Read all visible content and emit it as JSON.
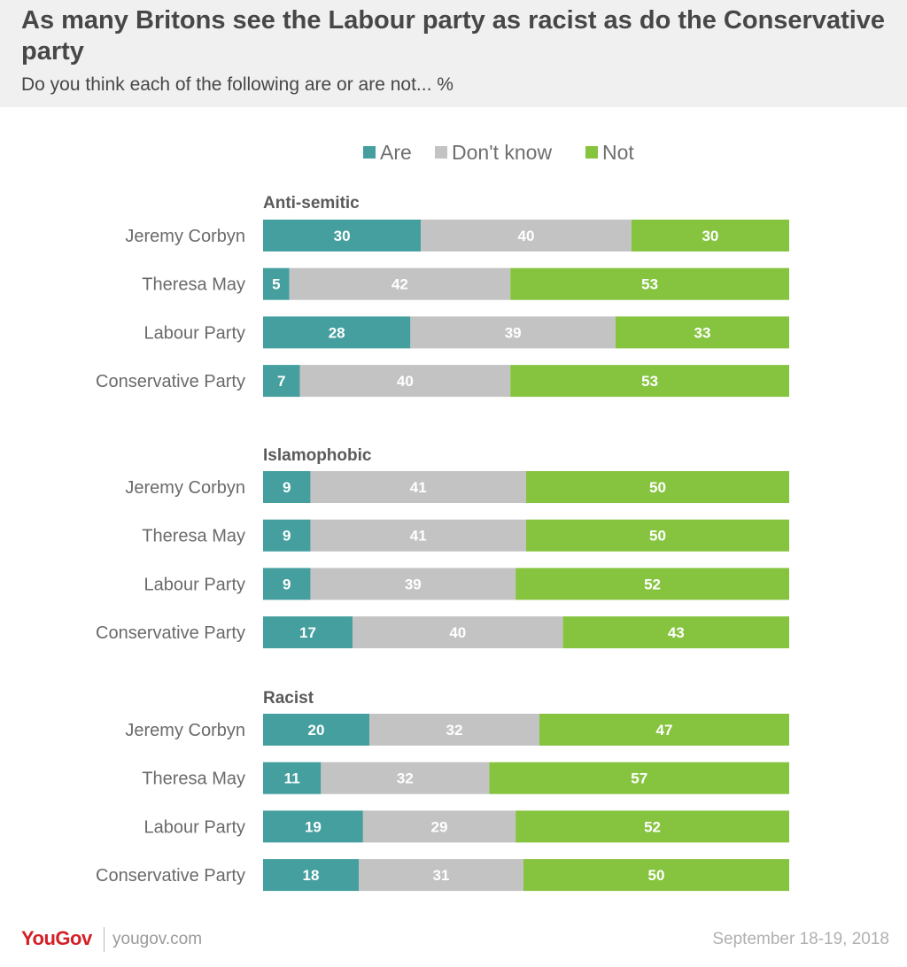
{
  "header": {
    "title": "As many Britons see the Labour party as racist as do the Conservative party",
    "subtitle": "Do you think each of the following are or are not... %"
  },
  "footer": {
    "logo": "YouGov",
    "site": "yougov.com",
    "date": "September 18-19, 2018"
  },
  "colors": {
    "are": "#459f9f",
    "dont_know": "#c3c3c3",
    "not": "#86c440"
  },
  "chart_data": {
    "type": "bar",
    "orientation": "horizontal",
    "stacked": true,
    "legend": [
      "Are",
      "Don't know",
      "Not"
    ],
    "legend_position": "top",
    "groups": [
      {
        "name": "Anti-semitic",
        "categories": [
          "Jeremy Corbyn",
          "Theresa May",
          "Labour Party",
          "Conservative Party"
        ],
        "series": [
          {
            "name": "Are",
            "values": [
              30,
              5,
              28,
              7
            ]
          },
          {
            "name": "Don't know",
            "values": [
              40,
              42,
              39,
              40
            ]
          },
          {
            "name": "Not",
            "values": [
              30,
              53,
              33,
              53
            ]
          }
        ]
      },
      {
        "name": "Islamophobic",
        "categories": [
          "Jeremy Corbyn",
          "Theresa May",
          "Labour Party",
          "Conservative Party"
        ],
        "series": [
          {
            "name": "Are",
            "values": [
              9,
              9,
              9,
              17
            ]
          },
          {
            "name": "Don't know",
            "values": [
              41,
              41,
              39,
              40
            ]
          },
          {
            "name": "Not",
            "values": [
              50,
              50,
              52,
              43
            ]
          }
        ]
      },
      {
        "name": "Racist",
        "categories": [
          "Jeremy Corbyn",
          "Theresa May",
          "Labour Party",
          "Conservative Party"
        ],
        "series": [
          {
            "name": "Are",
            "values": [
              20,
              11,
              19,
              18
            ]
          },
          {
            "name": "Don't know",
            "values": [
              32,
              32,
              29,
              31
            ]
          },
          {
            "name": "Not",
            "values": [
              47,
              57,
              52,
              50
            ]
          }
        ]
      }
    ]
  }
}
